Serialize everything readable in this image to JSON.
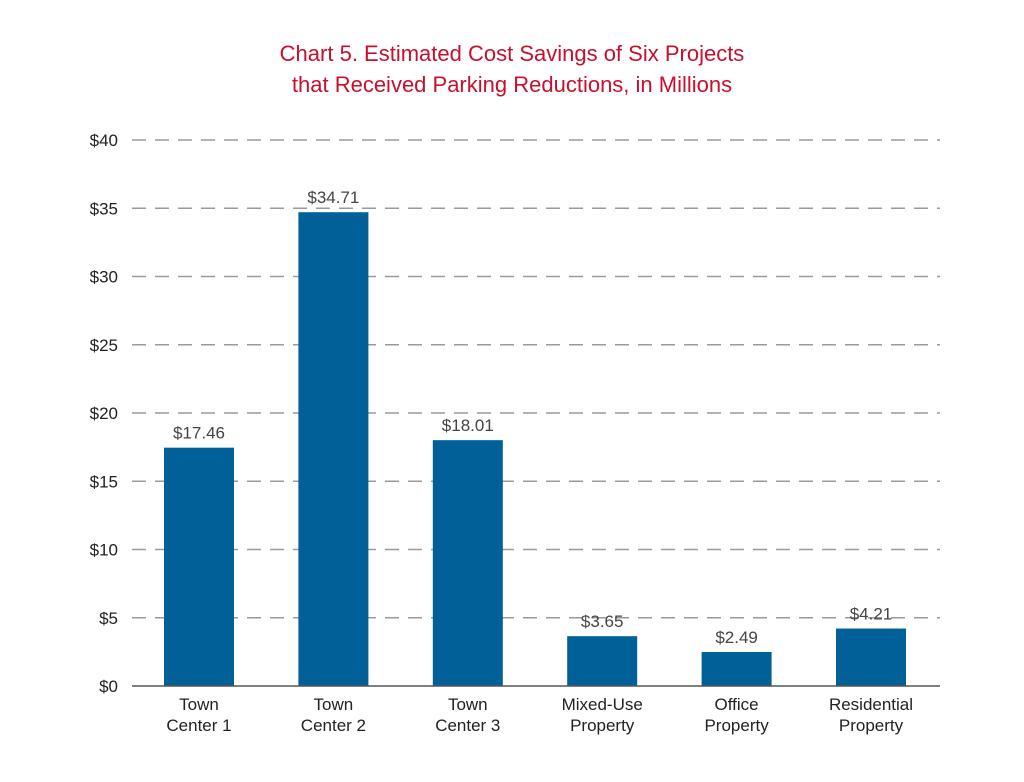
{
  "chart_data": {
    "type": "bar",
    "title_lines": [
      "Chart 5. Estimated Cost Savings of Six Projects",
      "that Received Parking Reductions, in Millions"
    ],
    "categories": [
      [
        "Town",
        "Center 1"
      ],
      [
        "Town",
        "Center 2"
      ],
      [
        "Town",
        "Center 3"
      ],
      [
        "Mixed-Use",
        "Property"
      ],
      [
        "Office",
        "Property"
      ],
      [
        "Residential",
        "Property"
      ]
    ],
    "values": [
      17.46,
      34.71,
      18.01,
      3.65,
      2.49,
      4.21
    ],
    "data_labels": [
      "$17.46",
      "$34.71",
      "$18.01",
      "$3.65",
      "$2.49",
      "$4.21"
    ],
    "yticks": [
      0,
      5,
      10,
      15,
      20,
      25,
      30,
      35,
      40
    ],
    "ytick_labels": [
      "$0",
      "$5",
      "$10",
      "$15",
      "$20",
      "$25",
      "$30",
      "$35",
      "$40"
    ],
    "ylim": [
      0,
      40
    ],
    "grid": "dashed horizontal",
    "bar_color": "#006097",
    "title_color": "#c8102e"
  }
}
